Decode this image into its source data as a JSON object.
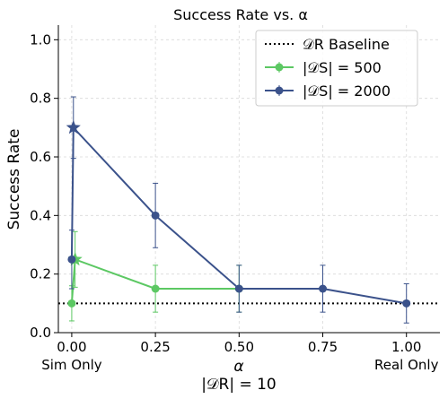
{
  "chart_data": {
    "type": "line",
    "title": "Success Rate vs. α",
    "xlabel": "α",
    "xlabel_sub": "|𝒟R| = 10",
    "ylabel": "Success Rate",
    "xlim": [
      -0.04,
      1.1
    ],
    "ylim": [
      0,
      1.05
    ],
    "xticks": [
      {
        "value": 0.0,
        "label": "0.00",
        "sub": "Sim Only"
      },
      {
        "value": 0.25,
        "label": "0.25",
        "sub": ""
      },
      {
        "value": 0.5,
        "label": "0.50",
        "sub": ""
      },
      {
        "value": 0.75,
        "label": "0.75",
        "sub": ""
      },
      {
        "value": 1.0,
        "label": "1.00",
        "sub": "Real Only"
      }
    ],
    "yticks": [
      {
        "value": 0.0,
        "label": "0.0"
      },
      {
        "value": 0.2,
        "label": "0.2"
      },
      {
        "value": 0.4,
        "label": "0.4"
      },
      {
        "value": 0.6,
        "label": "0.6"
      },
      {
        "value": 0.8,
        "label": "0.8"
      },
      {
        "value": 1.0,
        "label": "1.0"
      }
    ],
    "grid": true,
    "legend_position": "top-right",
    "baseline": {
      "name": "𝒟R Baseline",
      "value": 0.1,
      "color": "#000000"
    },
    "series": [
      {
        "name": "|𝒟S| = 500",
        "color": "#5cc863",
        "points": [
          {
            "x": 0.0,
            "y": 0.1,
            "err": 0.06,
            "marker": "circle"
          },
          {
            "x": 0.01,
            "y": 0.25,
            "err": 0.095,
            "marker": "star"
          },
          {
            "x": 0.25,
            "y": 0.15,
            "err": 0.08,
            "marker": "circle"
          },
          {
            "x": 0.5,
            "y": 0.15,
            "err": 0.08,
            "marker": "circle"
          }
        ]
      },
      {
        "name": "|𝒟S| = 2000",
        "color": "#3b528b",
        "points": [
          {
            "x": 0.0,
            "y": 0.25,
            "err": 0.1,
            "marker": "circle"
          },
          {
            "x": 0.005,
            "y": 0.7,
            "err": 0.105,
            "marker": "star"
          },
          {
            "x": 0.25,
            "y": 0.4,
            "err": 0.11,
            "marker": "circle"
          },
          {
            "x": 0.5,
            "y": 0.15,
            "err": 0.08,
            "marker": "circle"
          },
          {
            "x": 0.75,
            "y": 0.15,
            "err": 0.08,
            "marker": "circle"
          },
          {
            "x": 1.0,
            "y": 0.1,
            "err": 0.067,
            "marker": "circle"
          }
        ]
      }
    ]
  }
}
